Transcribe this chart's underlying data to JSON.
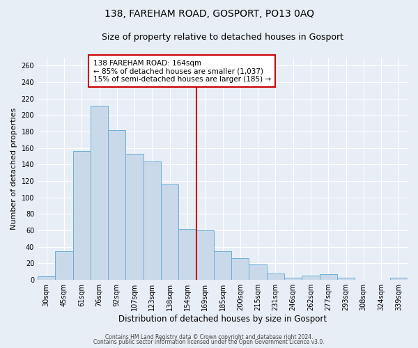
{
  "title": "138, FAREHAM ROAD, GOSPORT, PO13 0AQ",
  "subtitle": "Size of property relative to detached houses in Gosport",
  "xlabel": "Distribution of detached houses by size in Gosport",
  "ylabel": "Number of detached properties",
  "bar_labels": [
    "30sqm",
    "45sqm",
    "61sqm",
    "76sqm",
    "92sqm",
    "107sqm",
    "123sqm",
    "138sqm",
    "154sqm",
    "169sqm",
    "185sqm",
    "200sqm",
    "215sqm",
    "231sqm",
    "246sqm",
    "262sqm",
    "277sqm",
    "293sqm",
    "308sqm",
    "324sqm",
    "339sqm"
  ],
  "bar_heights": [
    4,
    35,
    156,
    211,
    182,
    153,
    144,
    116,
    62,
    60,
    35,
    26,
    19,
    8,
    3,
    5,
    7,
    3,
    0,
    0,
    3
  ],
  "bar_color": "#c9d9ea",
  "bar_edge_color": "#6baed6",
  "vline_x_index": 8.5,
  "vline_color": "#cc0000",
  "annotation_title": "138 FAREHAM ROAD: 164sqm",
  "annotation_line1": "← 85% of detached houses are smaller (1,037)",
  "annotation_line2": "15% of semi-detached houses are larger (185) →",
  "annotation_box_color": "#ffffff",
  "annotation_box_edge": "#cc0000",
  "ylim": [
    0,
    270
  ],
  "yticks": [
    0,
    20,
    40,
    60,
    80,
    100,
    120,
    140,
    160,
    180,
    200,
    220,
    240,
    260
  ],
  "bg_color": "#e8eef5",
  "grid_color": "#ffffff",
  "footer1": "Contains HM Land Registry data © Crown copyright and database right 2024.",
  "footer2": "Contains public sector information licensed under the Open Government Licence v3.0.",
  "title_fontsize": 10,
  "subtitle_fontsize": 9,
  "tick_fontsize": 7,
  "axis_label_fontsize": 8.5,
  "ylabel_fontsize": 8
}
